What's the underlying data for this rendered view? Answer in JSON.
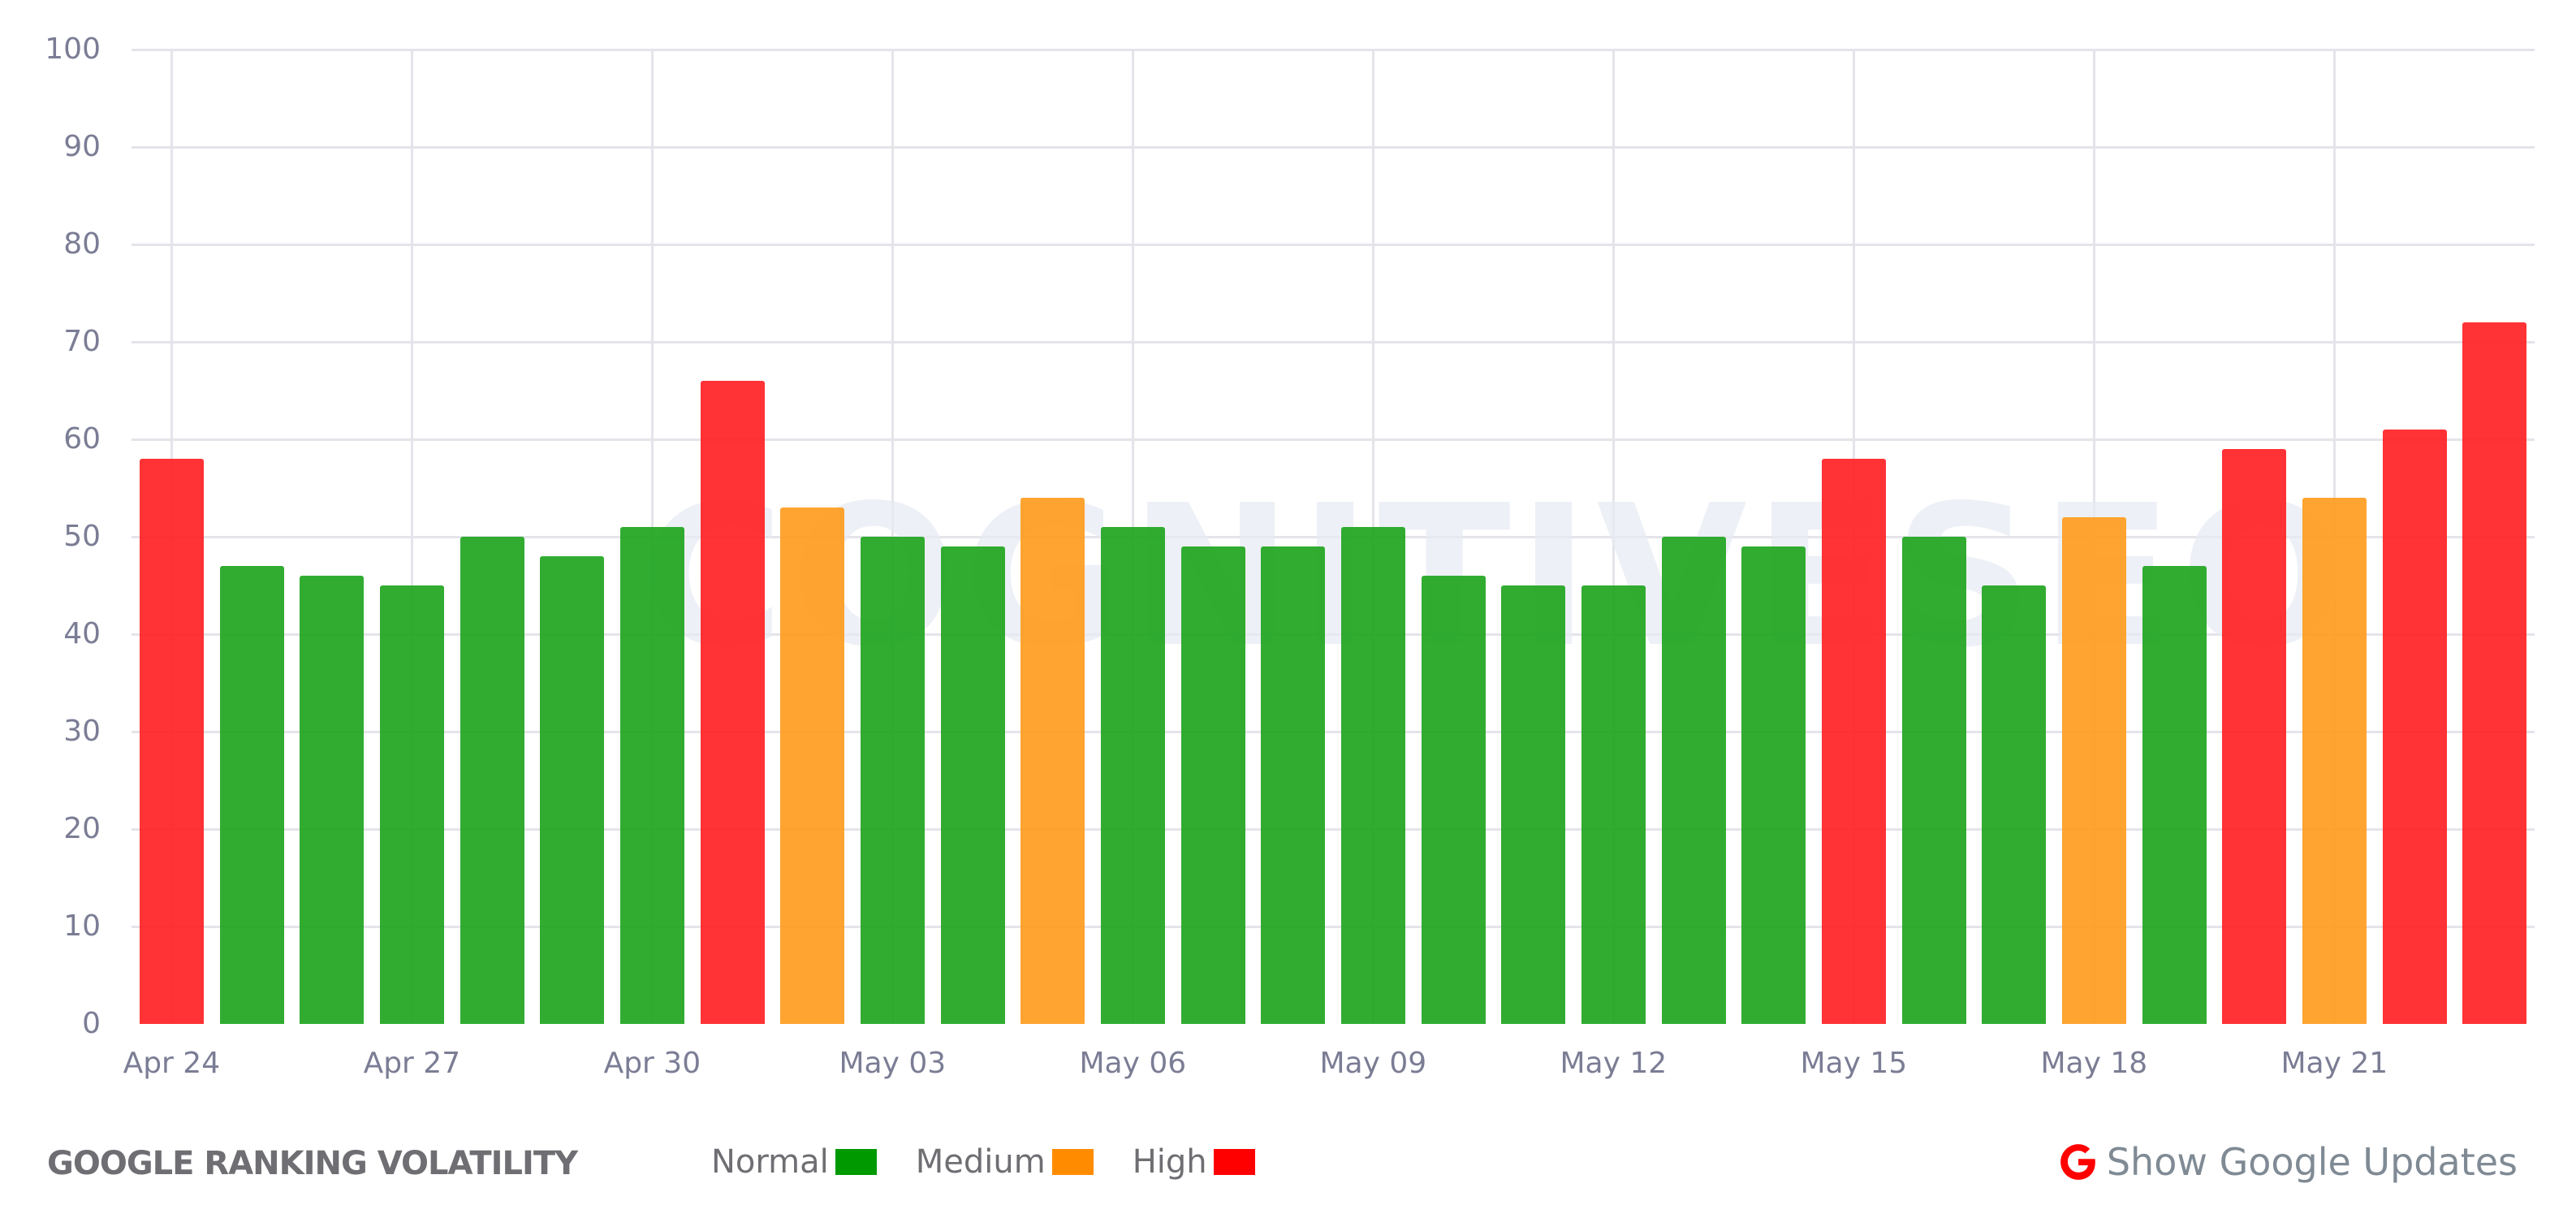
{
  "footer": {
    "title": "GOOGLE RANKING VOLATILITY",
    "legend": [
      {
        "label": "Normal",
        "color": "#009900"
      },
      {
        "label": "Medium",
        "color": "#FF8C00"
      },
      {
        "label": "High",
        "color": "#FF0000"
      }
    ],
    "show_updates_label": "Show Google Updates",
    "show_updates_icon": "google-g-icon"
  },
  "watermark": "COGNITIVESEO",
  "colors": {
    "normal_bar": "#1BA31B",
    "medium_bar": "#FF9A1A",
    "high_bar": "#FF1C1F",
    "grid": "#E4E4EA",
    "tick_text": "#7B7D95"
  },
  "chart_data": {
    "type": "bar",
    "title": "GOOGLE RANKING VOLATILITY",
    "xlabel": "",
    "ylabel": "",
    "ylim": [
      0,
      100
    ],
    "yticks": [
      0,
      10,
      20,
      30,
      40,
      50,
      60,
      70,
      80,
      90,
      100
    ],
    "xtick_labels": [
      "Apr 24",
      "Apr 27",
      "Apr 30",
      "May 03",
      "May 06",
      "May 09",
      "May 12",
      "May 15",
      "May 18",
      "May 21"
    ],
    "grid": true,
    "legend_position": "bottom",
    "categories": [
      "Apr 24",
      "Apr 25",
      "Apr 26",
      "Apr 27",
      "Apr 28",
      "Apr 29",
      "Apr 30",
      "May 01",
      "May 02",
      "May 03",
      "May 04",
      "May 05",
      "May 06",
      "May 07",
      "May 08",
      "May 09",
      "May 10",
      "May 11",
      "May 12",
      "May 13",
      "May 14",
      "May 15",
      "May 16",
      "May 17",
      "May 18",
      "May 19",
      "May 20",
      "May 21",
      "May 22",
      "May 23"
    ],
    "values": [
      58,
      47,
      46,
      45,
      50,
      48,
      51,
      66,
      53,
      50,
      49,
      54,
      51,
      49,
      49,
      51,
      46,
      45,
      45,
      50,
      49,
      58,
      50,
      45,
      52,
      47,
      59,
      54,
      61,
      72
    ],
    "levels": [
      "High",
      "Normal",
      "Normal",
      "Normal",
      "Normal",
      "Normal",
      "Normal",
      "High",
      "Medium",
      "Normal",
      "Normal",
      "Medium",
      "Normal",
      "Normal",
      "Normal",
      "Normal",
      "Normal",
      "Normal",
      "Normal",
      "Normal",
      "Normal",
      "High",
      "Normal",
      "Normal",
      "Medium",
      "Normal",
      "High",
      "Medium",
      "High",
      "High"
    ],
    "legend": [
      "Normal",
      "Medium",
      "High"
    ]
  }
}
